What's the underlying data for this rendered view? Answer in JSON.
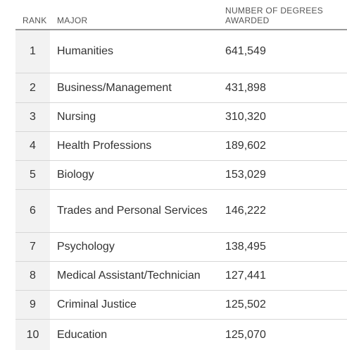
{
  "header": {
    "rank": "RANK",
    "major": "MAJOR",
    "number": "NUMBER OF DEGREES AWARDED"
  },
  "rows": [
    {
      "rank": "1",
      "major": "Humanities",
      "number": "641,549"
    },
    {
      "rank": "2",
      "major": "Business/Management",
      "number": "431,898"
    },
    {
      "rank": "3",
      "major": "Nursing",
      "number": "310,320"
    },
    {
      "rank": "4",
      "major": "Health Professions",
      "number": "189,602"
    },
    {
      "rank": "5",
      "major": "Biology",
      "number": "153,029"
    },
    {
      "rank": "6",
      "major": "Trades and Personal Services",
      "number": "146,222"
    },
    {
      "rank": "7",
      "major": "Psychology",
      "number": "138,495"
    },
    {
      "rank": "8",
      "major": "Medical Assistant/Technician",
      "number": "127,441"
    },
    {
      "rank": "9",
      "major": "Criminal Justice",
      "number": "125,502"
    },
    {
      "rank": "10",
      "major": "Education",
      "number": "125,070"
    }
  ]
}
